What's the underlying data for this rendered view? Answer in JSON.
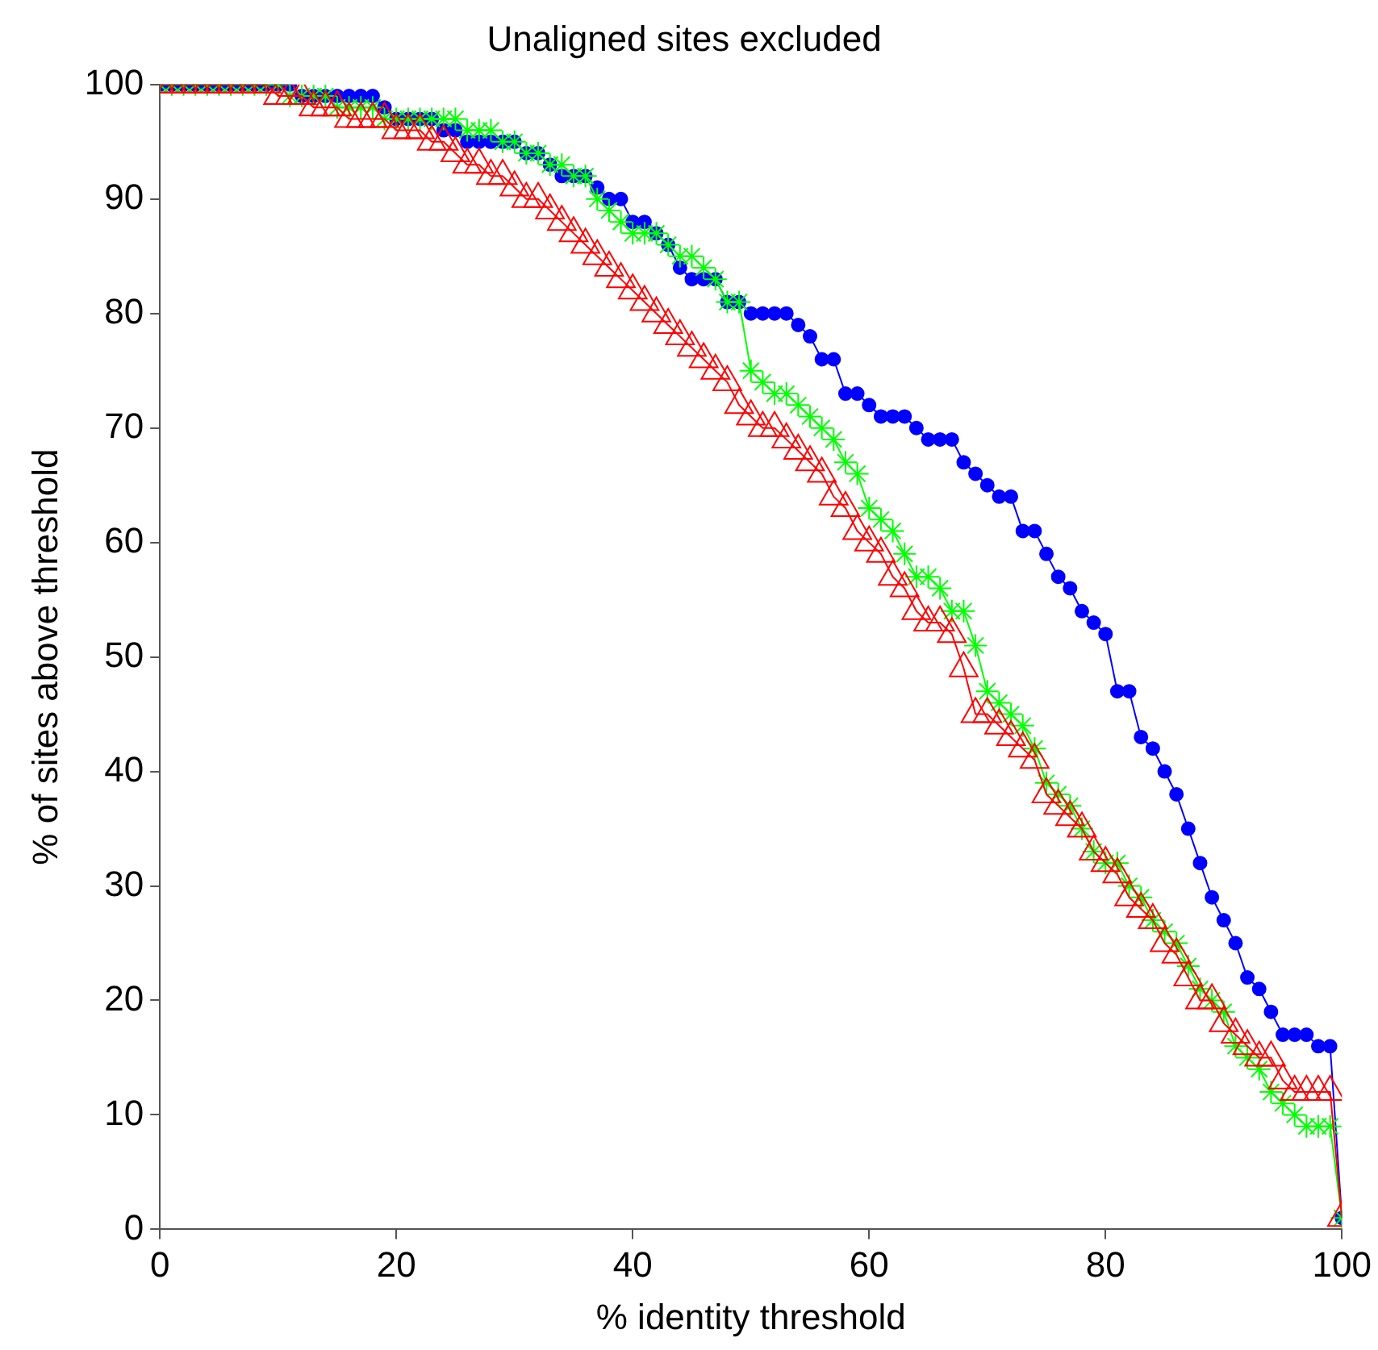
{
  "chart_data": {
    "type": "line",
    "title": "Unaligned sites excluded",
    "xlabel": "% identity threshold",
    "ylabel": "% of sites above threshold",
    "x": [
      0,
      1,
      2,
      3,
      4,
      5,
      6,
      7,
      8,
      9,
      10,
      11,
      12,
      13,
      14,
      15,
      16,
      17,
      18,
      19,
      20,
      21,
      22,
      23,
      24,
      25,
      26,
      27,
      28,
      29,
      30,
      31,
      32,
      33,
      34,
      35,
      36,
      37,
      38,
      39,
      40,
      41,
      42,
      43,
      44,
      45,
      46,
      47,
      48,
      49,
      50,
      51,
      52,
      53,
      54,
      55,
      56,
      57,
      58,
      59,
      60,
      61,
      62,
      63,
      64,
      65,
      66,
      67,
      68,
      69,
      70,
      71,
      72,
      73,
      74,
      75,
      76,
      77,
      78,
      79,
      80,
      81,
      82,
      83,
      84,
      85,
      86,
      87,
      88,
      89,
      90,
      91,
      92,
      93,
      94,
      95,
      96,
      97,
      98,
      99,
      100
    ],
    "xlim": [
      0,
      100
    ],
    "xticks": [
      0,
      20,
      40,
      60,
      80,
      100
    ],
    "ylim": [
      0,
      100
    ],
    "yticks": [
      0,
      10,
      20,
      30,
      40,
      50,
      60,
      70,
      80,
      90,
      100
    ],
    "grid": false,
    "legend": false,
    "line_style": "solid",
    "series": [
      {
        "color": "#0000ff",
        "marker": "circle",
        "values": [
          100,
          100,
          100,
          100,
          100,
          100,
          100,
          100,
          100,
          100,
          100,
          100,
          99,
          99,
          99,
          99,
          99,
          99,
          99,
          98,
          97,
          97,
          97,
          97,
          96,
          96,
          95,
          95,
          95,
          95,
          95,
          94,
          94,
          93,
          92,
          92,
          92,
          91,
          90,
          90,
          88,
          88,
          87,
          86,
          84,
          83,
          83,
          83,
          81,
          81,
          80,
          80,
          80,
          80,
          79,
          78,
          76,
          76,
          73,
          73,
          72,
          71,
          71,
          71,
          70,
          69,
          69,
          69,
          67,
          66,
          65,
          64,
          64,
          61,
          61,
          59,
          57,
          56,
          54,
          53,
          52,
          47,
          47,
          43,
          42,
          40,
          38,
          35,
          32,
          29,
          27,
          25,
          22,
          21,
          19,
          17,
          17,
          17,
          16,
          16,
          1
        ]
      },
      {
        "color": "#00ff00",
        "marker": "cross",
        "values": [
          100,
          100,
          100,
          100,
          100,
          100,
          100,
          100,
          100,
          100,
          100,
          99,
          99,
          99,
          99,
          98,
          98,
          98,
          98,
          97,
          97,
          97,
          97,
          97,
          97,
          97,
          96,
          96,
          96,
          95,
          95,
          94,
          94,
          93,
          93,
          92,
          92,
          90,
          89,
          88,
          87,
          87,
          87,
          86,
          85,
          85,
          84,
          83,
          81,
          81,
          75,
          74,
          73,
          73,
          72,
          71,
          70,
          69,
          67,
          66,
          63,
          62,
          61,
          59,
          57,
          57,
          56,
          54,
          54,
          51,
          47,
          46,
          45,
          44,
          42,
          39,
          38,
          37,
          35,
          33,
          32,
          32,
          30,
          29,
          27,
          26,
          25,
          23,
          21,
          20,
          19,
          16,
          15,
          14,
          12,
          11,
          10,
          9,
          9,
          9,
          1
        ]
      },
      {
        "color": "#ff0000",
        "marker": "triangle",
        "values": [
          100,
          100,
          100,
          100,
          100,
          100,
          100,
          100,
          100,
          100,
          99,
          99,
          99,
          98,
          98,
          98,
          97,
          97,
          97,
          97,
          96,
          96,
          96,
          95,
          95,
          94,
          93,
          93,
          92,
          92,
          91,
          90,
          90,
          89,
          88,
          87,
          86,
          85,
          84,
          83,
          82,
          81,
          80,
          79,
          78,
          77,
          76,
          75,
          74,
          72,
          71,
          70,
          70,
          69,
          68,
          67,
          66,
          64,
          63,
          61,
          60,
          59,
          57,
          56,
          54,
          53,
          53,
          52,
          49,
          45,
          45,
          44,
          43,
          42,
          41,
          38,
          37,
          36,
          35,
          33,
          32,
          31,
          29,
          28,
          27,
          25,
          24,
          22,
          20,
          20,
          18,
          17,
          16,
          15,
          15,
          13,
          12,
          12,
          12,
          12,
          1
        ]
      }
    ]
  }
}
